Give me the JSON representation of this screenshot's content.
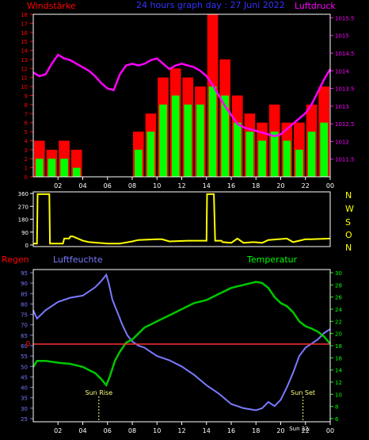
{
  "top": {
    "label_left": "Windstärke",
    "title": "24 hours graph day : 27 Juni 2022",
    "label_right": "Luftdruck"
  },
  "mid": {
    "compass_labels": [
      "N",
      "W",
      "S",
      "O",
      "N"
    ]
  },
  "bottom": {
    "label_regen": "Regen",
    "label_hum": "Luftfeuchte",
    "label_temp": "Temperatur",
    "sunrise_label": "Sun Rise",
    "sunset_label": "Sun Set",
    "sunset_time_label": "Sun 22:"
  },
  "colors": {
    "wind_gust": "#ff0000",
    "wind_avg": "#00ff00",
    "pressure": "#ff00ff",
    "direction": "#ffff00",
    "humidity": "#7a7aff",
    "temperature": "#00c800",
    "rain": "#ff3030",
    "frame": "#ffffff",
    "bg": "#000000",
    "sun": "#ffff80"
  },
  "chart_data": [
    {
      "type": "bar+line",
      "title": "24 hours graph day : 27 Juni 2022",
      "x_ticks": [
        "02",
        "04",
        "06",
        "08",
        "10",
        "12",
        "14",
        "16",
        "18",
        "20",
        "22",
        "00"
      ],
      "x_range_hours": [
        0,
        24
      ],
      "left_axis": {
        "label": "Windstärke",
        "range": [
          0,
          18
        ],
        "ticks": [
          0,
          1,
          2,
          3,
          4,
          5,
          6,
          7,
          8,
          9,
          10,
          11,
          12,
          13,
          14,
          15,
          16,
          17,
          18
        ]
      },
      "right_axis": {
        "label": "Luftdruck",
        "range": [
          1011,
          1015.6
        ],
        "ticks": [
          "1011.5",
          "1012",
          "1012.5",
          "1013",
          "1013.5",
          "1014",
          "1014.5",
          "1015",
          "1015.5"
        ]
      },
      "wind_gust_hourly": [
        4,
        3,
        4,
        3,
        0,
        0,
        0,
        0,
        5,
        7,
        11,
        12,
        11,
        10,
        18,
        13,
        9,
        7,
        6,
        8,
        6,
        6,
        8,
        10
      ],
      "wind_avg_hourly": [
        2,
        2,
        2,
        1,
        0,
        0,
        0,
        0,
        3,
        5,
        8,
        9,
        8,
        8,
        10,
        9,
        6,
        5,
        4,
        5,
        4,
        3,
        5,
        6
      ],
      "pressure": {
        "x": [
          0,
          0.5,
          1,
          1.5,
          2,
          2.5,
          3,
          3.5,
          4,
          4.5,
          5,
          5.5,
          6,
          6.5,
          7,
          7.5,
          8,
          8.5,
          9,
          9.5,
          10,
          10.5,
          11,
          11.5,
          12,
          12.5,
          13,
          13.5,
          14,
          14.5,
          15,
          15.5,
          16,
          16.5,
          17,
          17.5,
          18,
          18.5,
          19,
          19.5,
          20,
          20.5,
          21,
          21.5,
          22,
          22.5,
          23,
          23.5,
          24
        ],
        "y": [
          1013.95,
          1013.85,
          1013.9,
          1014.2,
          1014.45,
          1014.35,
          1014.3,
          1014.2,
          1014.1,
          1014.0,
          1013.85,
          1013.65,
          1013.5,
          1013.45,
          1013.9,
          1014.15,
          1014.2,
          1014.15,
          1014.2,
          1014.3,
          1014.35,
          1014.2,
          1014.05,
          1014.15,
          1014.2,
          1014.15,
          1014.1,
          1014.0,
          1013.85,
          1013.6,
          1013.3,
          1013.0,
          1012.75,
          1012.5,
          1012.4,
          1012.35,
          1012.3,
          1012.25,
          1012.2,
          1012.15,
          1012.2,
          1012.35,
          1012.5,
          1012.65,
          1012.8,
          1013.05,
          1013.4,
          1013.75,
          1014.05
        ]
      }
    },
    {
      "type": "line",
      "y_range": [
        0,
        360
      ],
      "y_ticks": [
        0,
        90,
        180,
        270,
        360
      ],
      "direction": {
        "x": [
          0,
          0.3,
          0.35,
          1.3,
          1.35,
          2.4,
          2.5,
          2.9,
          3.0,
          3.2,
          4.0,
          4.5,
          6.0,
          7.0,
          8.0,
          8.5,
          10.0,
          10.4,
          11.0,
          12.5,
          14.0,
          14.05,
          14.6,
          14.7,
          15.2,
          15.3,
          16.0,
          16.5,
          17.0,
          17.8,
          18.5,
          19.0,
          20.5,
          21.0,
          22.0,
          22.5,
          24.0
        ],
        "y": [
          10,
          10,
          355,
          355,
          10,
          10,
          45,
          45,
          60,
          60,
          30,
          20,
          10,
          10,
          25,
          35,
          40,
          40,
          25,
          30,
          30,
          355,
          355,
          30,
          30,
          20,
          15,
          45,
          15,
          20,
          15,
          35,
          45,
          20,
          40,
          40,
          45
        ]
      }
    },
    {
      "type": "line",
      "left_axis": {
        "label": "Luftfeuchte",
        "range": [
          25,
          95
        ],
        "ticks": [
          25,
          30,
          35,
          40,
          45,
          50,
          55,
          60,
          65,
          70,
          75,
          80,
          85,
          90,
          95
        ]
      },
      "right_axis": {
        "label": "Temperatur",
        "range": [
          6,
          30
        ],
        "ticks": [
          6,
          8,
          10,
          12,
          14,
          16,
          18,
          20,
          22,
          24,
          26,
          28,
          30
        ]
      },
      "rain_line_value": "0",
      "sunrise": {
        "label": "Sun Rise",
        "hour": 5.3
      },
      "sunset": {
        "label": "Sun Set",
        "hour": 21.8
      },
      "humidity": {
        "x": [
          0,
          0.3,
          1,
          2,
          3,
          4,
          4.5,
          5,
          5.5,
          5.9,
          6.1,
          6.4,
          6.8,
          7.2,
          7.6,
          8,
          8.5,
          9,
          9.5,
          10,
          11,
          12,
          13,
          14,
          15,
          16,
          17,
          18,
          18.5,
          19,
          19.5,
          20,
          20.5,
          21,
          21.5,
          22,
          22.5,
          23,
          23.5,
          24
        ],
        "y": [
          77,
          73,
          77,
          81,
          83,
          84,
          86,
          88,
          91,
          94,
          90,
          82,
          76,
          70,
          65,
          62,
          60,
          59,
          57,
          55,
          53,
          50,
          46,
          41,
          37,
          32,
          30,
          29,
          30,
          33,
          31,
          34,
          40,
          47,
          55,
          59,
          61,
          63,
          66,
          68
        ],
        "name": "Luftfeuchte"
      },
      "temperature": {
        "x": [
          0,
          0.3,
          1,
          2,
          3,
          4,
          4.5,
          5,
          5.5,
          5.9,
          6.2,
          6.6,
          7,
          7.5,
          8,
          8.5,
          9,
          9.5,
          10,
          11,
          12,
          13,
          14,
          15,
          16,
          17,
          18,
          18.5,
          19,
          19.5,
          20,
          20.5,
          21,
          21.5,
          22,
          22.5,
          23,
          23.5,
          24
        ],
        "y": [
          14.5,
          15.5,
          15.5,
          15.2,
          15,
          14.5,
          14,
          13.5,
          12.5,
          11.5,
          13,
          15.5,
          17,
          18.5,
          19,
          20,
          21,
          21.5,
          22,
          23,
          24,
          25,
          25.5,
          26.5,
          27.5,
          28,
          28.5,
          28.3,
          27.5,
          26,
          25,
          24.5,
          23.5,
          22,
          21.2,
          20.8,
          20.3,
          19.5,
          18.3
        ],
        "name": "Temperatur"
      }
    }
  ]
}
